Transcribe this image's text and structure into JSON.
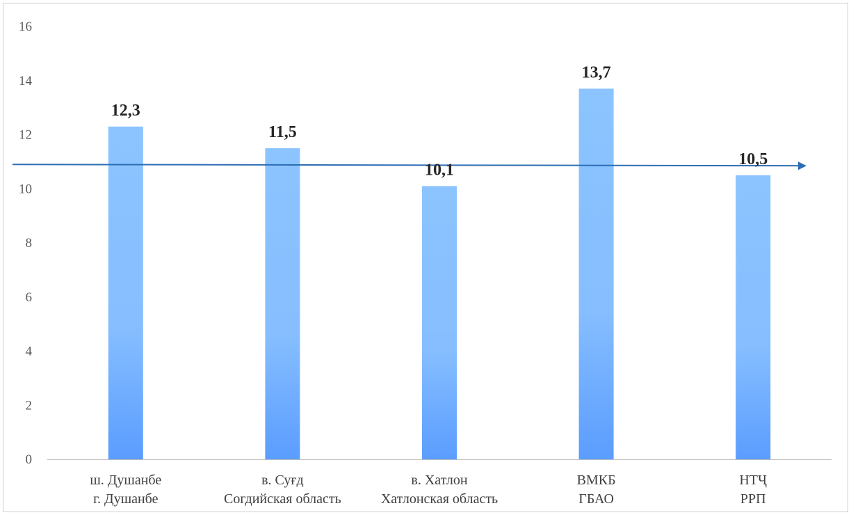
{
  "chart_data": {
    "type": "bar",
    "title": "",
    "xlabel": "",
    "ylabel": "",
    "ylim": [
      0,
      16
    ],
    "yticks": [
      "0",
      "2",
      "4",
      "6",
      "8",
      "10",
      "12",
      "14",
      "16"
    ],
    "grid": false,
    "legend": "none",
    "categories": [
      {
        "line1": "ш. Душанбе",
        "line2": "г. Душанбе"
      },
      {
        "line1": "в. Суғд",
        "line2": "Согдийская область"
      },
      {
        "line1": "в. Хатлон",
        "line2": "Хатлонская область"
      },
      {
        "line1": "ВМКБ",
        "line2": "ГБАО"
      },
      {
        "line1": "НТҶ",
        "line2": "РРП"
      }
    ],
    "values": [
      12.3,
      11.5,
      10.1,
      13.7,
      10.5
    ],
    "value_labels": [
      "12,3",
      "11,5",
      "10,1",
      "13,7",
      "10,5"
    ],
    "reference_arrow": {
      "y_start": 10.9,
      "y_end": 10.85
    },
    "colors": {
      "bar_top": "#8cc4ff",
      "bar_bottom": "#5b9dff",
      "arrow": "#2e6db4",
      "axis": "#bfbfbf"
    }
  }
}
